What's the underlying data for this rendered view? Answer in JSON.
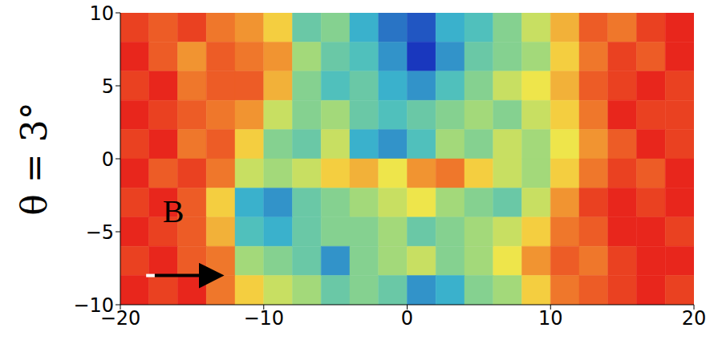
{
  "chart_data": {
    "type": "heatmap",
    "ylabel": "θ = 3°",
    "annotations": [
      "B"
    ],
    "xlim": [
      -20,
      20
    ],
    "ylim": [
      -10,
      10
    ],
    "xticks": [
      {
        "value": -20,
        "label": "−20"
      },
      {
        "value": -10,
        "label": "−10"
      },
      0,
      10,
      20
    ],
    "yticks": [
      {
        "value": -10,
        "label": "−10"
      },
      {
        "value": -5,
        "label": "−5"
      },
      0,
      5,
      10
    ],
    "x": [
      -19,
      -17,
      -15,
      -13,
      -11,
      -9,
      -7,
      -5,
      -3,
      -1,
      1,
      3,
      5,
      7,
      9,
      11,
      13,
      15,
      17,
      19
    ],
    "y": [
      9,
      7,
      5,
      3,
      1,
      -1,
      -3,
      -5,
      -7,
      -9
    ],
    "z": [
      [
        0.95,
        0.9,
        0.95,
        0.85,
        0.8,
        0.7,
        0.45,
        0.5,
        0.35,
        0.25,
        0.2,
        0.35,
        0.4,
        0.5,
        0.6,
        0.75,
        0.9,
        0.85,
        0.95,
        1.0
      ],
      [
        1.0,
        0.9,
        0.8,
        0.9,
        0.85,
        0.8,
        0.55,
        0.45,
        0.4,
        0.3,
        0.15,
        0.3,
        0.45,
        0.5,
        0.55,
        0.7,
        0.85,
        0.95,
        0.9,
        1.0
      ],
      [
        0.95,
        1.0,
        0.85,
        0.9,
        0.9,
        0.75,
        0.5,
        0.4,
        0.45,
        0.35,
        0.3,
        0.4,
        0.5,
        0.6,
        0.65,
        0.75,
        0.9,
        0.95,
        1.0,
        0.95
      ],
      [
        1.0,
        0.95,
        0.9,
        0.85,
        0.8,
        0.6,
        0.5,
        0.55,
        0.45,
        0.4,
        0.45,
        0.5,
        0.55,
        0.5,
        0.6,
        0.7,
        0.85,
        1.0,
        0.95,
        0.95
      ],
      [
        0.95,
        1.0,
        0.85,
        0.9,
        0.7,
        0.5,
        0.45,
        0.6,
        0.35,
        0.3,
        0.4,
        0.55,
        0.5,
        0.6,
        0.55,
        0.65,
        0.8,
        0.9,
        1.0,
        0.95
      ],
      [
        1.0,
        0.9,
        0.95,
        0.85,
        0.6,
        0.55,
        0.6,
        0.7,
        0.75,
        0.65,
        0.8,
        0.85,
        0.7,
        0.6,
        0.55,
        0.7,
        0.85,
        0.95,
        0.9,
        1.0
      ],
      [
        0.95,
        1.0,
        0.9,
        0.7,
        0.35,
        0.3,
        0.45,
        0.5,
        0.55,
        0.6,
        0.65,
        0.55,
        0.5,
        0.45,
        0.6,
        0.8,
        0.95,
        1.0,
        0.95,
        1.0
      ],
      [
        1.0,
        0.95,
        0.9,
        0.75,
        0.4,
        0.35,
        0.45,
        0.5,
        0.5,
        0.55,
        0.45,
        0.5,
        0.55,
        0.6,
        0.7,
        0.85,
        0.9,
        1.0,
        1.0,
        0.95
      ],
      [
        0.95,
        1.0,
        0.9,
        0.85,
        0.55,
        0.5,
        0.45,
        0.3,
        0.5,
        0.55,
        0.6,
        0.5,
        0.55,
        0.65,
        0.8,
        0.9,
        0.85,
        0.95,
        1.0,
        1.0
      ],
      [
        1.0,
        0.95,
        1.0,
        0.85,
        0.7,
        0.6,
        0.55,
        0.45,
        0.5,
        0.45,
        0.3,
        0.35,
        0.5,
        0.55,
        0.7,
        0.85,
        0.9,
        0.95,
        1.0,
        0.95
      ]
    ]
  }
}
